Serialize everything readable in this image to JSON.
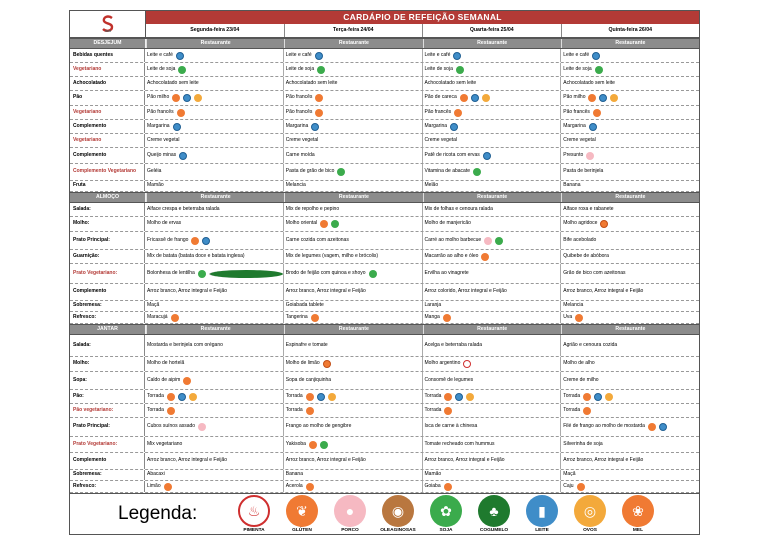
{
  "title": "CARDÁPIO DE REFEIÇÃO SEMANAL",
  "days": [
    "Segunda-feira 23/04",
    "Terça-feira 24/04",
    "Quarta-feira 25/04",
    "Quinta-feira 26/04"
  ],
  "restaurant_label": "Restaurante",
  "sections": [
    {
      "name": "DESJEJUM",
      "rows": [
        {
          "label": "Bebidas quentes",
          "red": false,
          "h": 13,
          "cells": [
            {
              "t": "Leite e café",
              "i": [
                "leite"
              ]
            },
            {
              "t": "Leite e café",
              "i": [
                "leite"
              ]
            },
            {
              "t": "Leite e café",
              "i": [
                "leite"
              ]
            },
            {
              "t": "Leite e café",
              "i": [
                "leite"
              ]
            }
          ]
        },
        {
          "label": "Vegetariano",
          "red": true,
          "h": 13,
          "cells": [
            {
              "t": "Leite de soja",
              "i": [
                "soja"
              ]
            },
            {
              "t": "Leite de soja",
              "i": [
                "soja"
              ]
            },
            {
              "t": "Leite de soja",
              "i": [
                "soja"
              ]
            },
            {
              "t": "Leite de soja",
              "i": [
                "soja"
              ]
            }
          ]
        },
        {
          "label": "Achocolatado",
          "red": false,
          "h": 13,
          "cells": [
            {
              "t": "Achocolatado sem leite",
              "i": []
            },
            {
              "t": "Achocolatado sem leite",
              "i": []
            },
            {
              "t": "Achocolatado sem leite",
              "i": []
            },
            {
              "t": "Achocolatado sem leite",
              "i": []
            }
          ]
        },
        {
          "label": "Pão",
          "red": false,
          "h": 14,
          "cells": [
            {
              "t": "Pão milho",
              "i": [
                "gluten",
                "leite",
                "ovos"
              ]
            },
            {
              "t": "Pão francês",
              "i": [
                "gluten"
              ]
            },
            {
              "t": "Pão de careca",
              "i": [
                "gluten",
                "leite",
                "ovos"
              ]
            },
            {
              "t": "Pão milho",
              "i": [
                "gluten",
                "leite",
                "ovos"
              ]
            }
          ]
        },
        {
          "label": "Vegetariano",
          "red": true,
          "h": 13,
          "cells": [
            {
              "t": "Pão francês",
              "i": [
                "gluten"
              ]
            },
            {
              "t": "Pão francês",
              "i": [
                "gluten"
              ]
            },
            {
              "t": "Pão francês",
              "i": [
                "gluten"
              ]
            },
            {
              "t": "Pão francês",
              "i": [
                "gluten"
              ]
            }
          ]
        },
        {
          "label": "Complemento",
          "red": false,
          "h": 13,
          "cells": [
            {
              "t": "Margarina",
              "i": [
                "leite"
              ]
            },
            {
              "t": "Margarina",
              "i": [
                "leite"
              ]
            },
            {
              "t": "Margarina",
              "i": [
                "leite"
              ]
            },
            {
              "t": "Margarina",
              "i": [
                "leite"
              ]
            }
          ]
        },
        {
          "label": "Vegetariano",
          "red": true,
          "h": 13,
          "cells": [
            {
              "t": "Creme vegetal",
              "i": []
            },
            {
              "t": "Creme vegetal",
              "i": []
            },
            {
              "t": "Creme vegetal",
              "i": []
            },
            {
              "t": "Creme vegetal",
              "i": []
            }
          ]
        },
        {
          "label": "Complemento",
          "red": false,
          "h": 15,
          "cells": [
            {
              "t": "Queijo minas",
              "i": [
                "leite"
              ]
            },
            {
              "t": "Carne moída",
              "i": []
            },
            {
              "t": "Patê de ricota com ervas",
              "i": [
                "leite"
              ]
            },
            {
              "t": "Presunto",
              "i": [
                "porco"
              ]
            }
          ]
        },
        {
          "label": "Complemento Vegetariano",
          "red": true,
          "h": 16,
          "cells": [
            {
              "t": "Geléia",
              "i": []
            },
            {
              "t": "Pasta de grão de bico",
              "i": [
                "soja"
              ]
            },
            {
              "t": "Vitamina de abacate",
              "i": [
                "soja"
              ]
            },
            {
              "t": "Pasta de berinjela",
              "i": []
            }
          ]
        },
        {
          "label": "Fruta",
          "red": false,
          "h": 10,
          "cells": [
            {
              "t": "Mamão",
              "i": []
            },
            {
              "t": "Melancia",
              "i": []
            },
            {
              "t": "Melão",
              "i": []
            },
            {
              "t": "Banana",
              "i": []
            }
          ]
        }
      ]
    },
    {
      "name": "ALMOÇO",
      "rows": [
        {
          "label": "Salada:",
          "red": false,
          "h": 13,
          "cells": [
            {
              "t": "Alface crespa e beterraba ralada",
              "i": []
            },
            {
              "t": "Mix de repolho e pepino",
              "i": []
            },
            {
              "t": "Mix de folhas e cenoura ralada",
              "i": []
            },
            {
              "t": "Alface roxa e rabanete",
              "i": []
            }
          ]
        },
        {
          "label": "Molho:",
          "red": false,
          "h": 14,
          "cells": [
            {
              "t": "Molho de ervas",
              "i": []
            },
            {
              "t": "Molho oriental",
              "i": [
                "gluten",
                "soja"
              ]
            },
            {
              "t": "Molho de manjericão",
              "i": []
            },
            {
              "t": "Molho agridoce",
              "i": [
                "mel"
              ]
            }
          ]
        },
        {
          "label": "Prato Principal:",
          "red": false,
          "h": 17,
          "cells": [
            {
              "t": "Fricassê de frango",
              "i": [
                "gluten",
                "leite"
              ]
            },
            {
              "t": "Carne cozida com azeitonas",
              "i": []
            },
            {
              "t": "Carré ao molho barbecue",
              "i": [
                "porco",
                "soja"
              ]
            },
            {
              "t": "Bife acebolado",
              "i": []
            }
          ]
        },
        {
          "label": "Guarnição:",
          "red": false,
          "h": 13,
          "cells": [
            {
              "t": "Mix de batata (batata doce e batata inglesa)",
              "i": []
            },
            {
              "t": "Mix de legumes (vagem, milho e brócolis)",
              "i": []
            },
            {
              "t": "Macarrão ao alho e óleo",
              "i": [
                "gluten"
              ]
            },
            {
              "t": "Quibebe de abóbora",
              "i": []
            }
          ]
        },
        {
          "label": "Prato Vegetariano:",
          "red": true,
          "h": 19,
          "cells": [
            {
              "t": "Bolonhesa de lentilha",
              "i": [
                "soja",
                "cogumelo"
              ]
            },
            {
              "t": "Brodo de feijão com quinoa e shoyo",
              "i": [
                "soja"
              ]
            },
            {
              "t": "Ervilha ao vinagrete",
              "i": []
            },
            {
              "t": "Grão de bico com azeitonas",
              "i": []
            }
          ]
        },
        {
          "label": "Complemento",
          "red": false,
          "h": 16,
          "cells": [
            {
              "t": "Arroz branco, Arroz integral e Feijão",
              "i": []
            },
            {
              "t": "Arroz branco, Arroz integral e Feijão",
              "i": []
            },
            {
              "t": "Arroz colorido, Arroz integral e Feijão",
              "i": []
            },
            {
              "t": "Arroz branco, Arroz integral e Feijão",
              "i": []
            }
          ]
        },
        {
          "label": "Sobremesa:",
          "red": false,
          "h": 10,
          "cells": [
            {
              "t": "Maçã",
              "i": []
            },
            {
              "t": "Goiabada tablete",
              "i": []
            },
            {
              "t": "Laranja",
              "i": []
            },
            {
              "t": "Melancia",
              "i": []
            }
          ]
        },
        {
          "label": "Refresco:",
          "red": false,
          "h": 11,
          "cells": [
            {
              "t": "Maracujá",
              "i": [
                "gluten"
              ]
            },
            {
              "t": "Tangerina",
              "i": [
                "gluten"
              ]
            },
            {
              "t": "Manga",
              "i": [
                "gluten"
              ]
            },
            {
              "t": "Uva",
              "i": [
                "gluten"
              ]
            }
          ]
        }
      ]
    },
    {
      "name": "JANTAR",
      "rows": [
        {
          "label": "Salada:",
          "red": false,
          "h": 21,
          "cells": [
            {
              "t": "Mostarda e berinjela com orégano",
              "i": []
            },
            {
              "t": "Espinafre e tomate",
              "i": []
            },
            {
              "t": "Acelga e beterraba ralada",
              "i": []
            },
            {
              "t": "Agrião e cenoura cozida",
              "i": []
            }
          ]
        },
        {
          "label": "Molho:",
          "red": false,
          "h": 14,
          "cells": [
            {
              "t": "Molho de hortelã",
              "i": []
            },
            {
              "t": "Molho de limão",
              "i": [
                "mel"
              ]
            },
            {
              "t": "Molho argentino",
              "i": [
                "pimenta"
              ]
            },
            {
              "t": "Molho de alho",
              "i": []
            }
          ]
        },
        {
          "label": "Sopa:",
          "red": false,
          "h": 17,
          "cells": [
            {
              "t": "Caldo de aipim",
              "i": [
                "gluten"
              ]
            },
            {
              "t": "Sopa de canjiquinha",
              "i": []
            },
            {
              "t": "Consomê de legumes",
              "i": []
            },
            {
              "t": "Creme de milho",
              "i": []
            }
          ]
        },
        {
          "label": "Pão:",
          "red": false,
          "h": 13,
          "cells": [
            {
              "t": "Torrada",
              "i": [
                "gluten",
                "leite",
                "ovos"
              ]
            },
            {
              "t": "Torrada",
              "i": [
                "gluten",
                "leite",
                "ovos"
              ]
            },
            {
              "t": "Torrada",
              "i": [
                "gluten",
                "leite",
                "ovos"
              ]
            },
            {
              "t": "Torrada",
              "i": [
                "gluten",
                "leite",
                "ovos"
              ]
            }
          ]
        },
        {
          "label": "Pão vegetariano:",
          "red": true,
          "h": 13,
          "cells": [
            {
              "t": "Torrada",
              "i": [
                "gluten"
              ]
            },
            {
              "t": "Torrada",
              "i": [
                "gluten"
              ]
            },
            {
              "t": "Torrada",
              "i": [
                "gluten"
              ]
            },
            {
              "t": "Torrada",
              "i": [
                "gluten"
              ]
            }
          ]
        },
        {
          "label": "Prato Principal:",
          "red": false,
          "h": 18,
          "cells": [
            {
              "t": "Cubos suínos assado",
              "i": [
                "porco"
              ]
            },
            {
              "t": "Frango ao molho de gengibre",
              "i": []
            },
            {
              "t": "Isca de carne à chinesa",
              "i": []
            },
            {
              "t": "Filé de frango ao molho de mostarda",
              "i": [
                "gluten",
                "leite"
              ]
            }
          ]
        },
        {
          "label": "Prato Vegetariano:",
          "red": true,
          "h": 15,
          "cells": [
            {
              "t": "Mix vegetariano",
              "i": []
            },
            {
              "t": "Yakisoba",
              "i": [
                "gluten",
                "soja"
              ]
            },
            {
              "t": "Tomate recheado com hummus",
              "i": []
            },
            {
              "t": "Silverinha de soja",
              "i": []
            }
          ]
        },
        {
          "label": "Complemento",
          "red": false,
          "h": 16,
          "cells": [
            {
              "t": "Arroz branco, Arroz integral e Feijão",
              "i": []
            },
            {
              "t": "Arroz branco, Arroz integral e Feijão",
              "i": []
            },
            {
              "t": "Arroz branco, Arroz integral e Feijão",
              "i": []
            },
            {
              "t": "Arroz branco, Arroz integral e Feijão",
              "i": []
            }
          ]
        },
        {
          "label": "Sobremesa:",
          "red": false,
          "h": 10,
          "cells": [
            {
              "t": "Abacaxi",
              "i": []
            },
            {
              "t": "Banana",
              "i": []
            },
            {
              "t": "Mamão",
              "i": []
            },
            {
              "t": "Maçã",
              "i": []
            }
          ]
        },
        {
          "label": "Refresco:",
          "red": false,
          "h": 11,
          "cells": [
            {
              "t": "Limão",
              "i": [
                "gluten"
              ]
            },
            {
              "t": "Acerola",
              "i": [
                "gluten"
              ]
            },
            {
              "t": "Goiaba",
              "i": [
                "gluten"
              ]
            },
            {
              "t": "Caju",
              "i": [
                "gluten"
              ]
            }
          ]
        }
      ]
    }
  ],
  "legend": {
    "title": "Legenda:",
    "items": [
      {
        "key": "pimenta",
        "name": "PIMENTA",
        "color": "#cf2f2f"
      },
      {
        "key": "gluten",
        "name": "GLÚTEN",
        "color": "#f07a33"
      },
      {
        "key": "porco",
        "name": "PORCO",
        "color": "#f6b9c2"
      },
      {
        "key": "oleaginosas",
        "name": "OLEAGINOSAS",
        "color": "#b9773f"
      },
      {
        "key": "soja",
        "name": "SOJA",
        "color": "#3bab4c"
      },
      {
        "key": "cogumelo",
        "name": "COGUMELO",
        "color": "#1f7a2e"
      },
      {
        "key": "leite",
        "name": "LEITE",
        "color": "#3f8dc8"
      },
      {
        "key": "ovos",
        "name": "OVOS",
        "color": "#f3a93b"
      },
      {
        "key": "mel",
        "name": "MEL",
        "color": "#f07a33"
      }
    ]
  }
}
